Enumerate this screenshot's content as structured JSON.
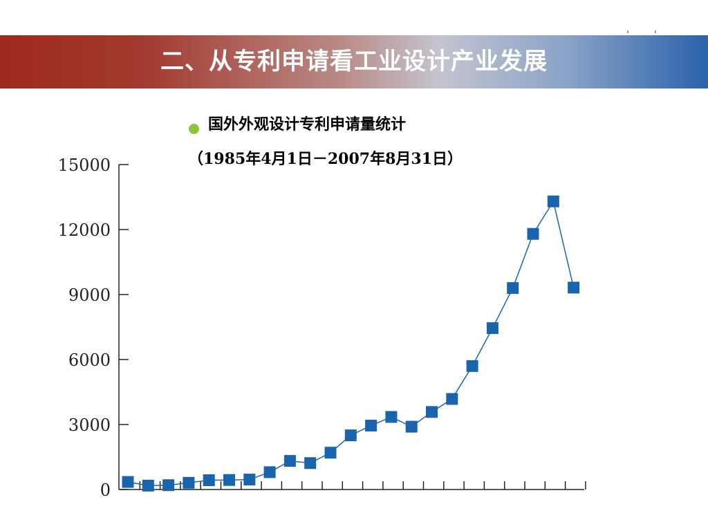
{
  "slide": {
    "title": "二、从专利申请看工业设计产业发展",
    "subtitle": "国外外观设计专利申请量统计",
    "date_range": "（1985年4月1日－2007年8月31日）"
  },
  "colors": {
    "header_left": "#9e2a1e",
    "header_right": "#2a62ab",
    "series": "#1a64ad",
    "bullet": "#8cc63f"
  },
  "chart_data": {
    "type": "line",
    "title": "",
    "xlabel": "",
    "ylabel": "",
    "ylim": [
      0,
      15000
    ],
    "yticks": [
      0,
      3000,
      6000,
      9000,
      12000,
      15000
    ],
    "x_tick_count": 23,
    "grid": false,
    "series": [
      {
        "marker": "square",
        "values": [
          350,
          180,
          200,
          310,
          430,
          440,
          460,
          800,
          1320,
          1220,
          1700,
          2500,
          2950,
          3350,
          2900,
          3580,
          4180,
          5700,
          7450,
          9300,
          11800,
          13300,
          9320
        ]
      }
    ]
  }
}
